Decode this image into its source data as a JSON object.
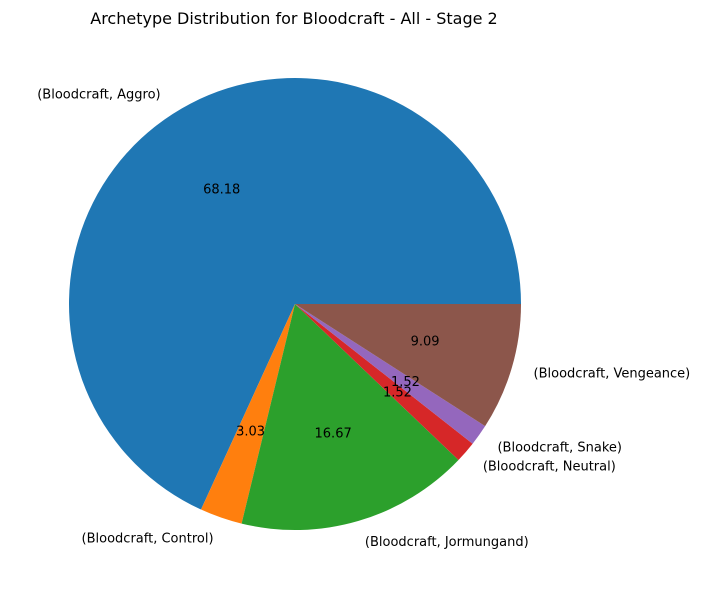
{
  "chart_data": {
    "type": "pie",
    "title": "Archetype Distribution for Bloodcraft - All - Stage 2",
    "start_angle_deg": 0,
    "direction": "counterclockwise",
    "slices": [
      {
        "label": "(Bloodcraft, Aggro)",
        "value": 68.18,
        "pct_label": "68.18",
        "color": "#1f77b4"
      },
      {
        "label": "(Bloodcraft, Control)",
        "value": 3.03,
        "pct_label": "3.03",
        "color": "#ff7f0e"
      },
      {
        "label": "(Bloodcraft, Jormungand)",
        "value": 16.67,
        "pct_label": "16.67",
        "color": "#2ca02c"
      },
      {
        "label": "(Bloodcraft, Neutral)",
        "value": 1.52,
        "pct_label": "1.52",
        "color": "#d62728"
      },
      {
        "label": "(Bloodcraft, Snake)",
        "value": 1.52,
        "pct_label": "1.52",
        "color": "#9467bd"
      },
      {
        "label": "(Bloodcraft, Vengeance)",
        "value": 9.09,
        "pct_label": "9.09",
        "color": "#8c564b"
      }
    ]
  }
}
